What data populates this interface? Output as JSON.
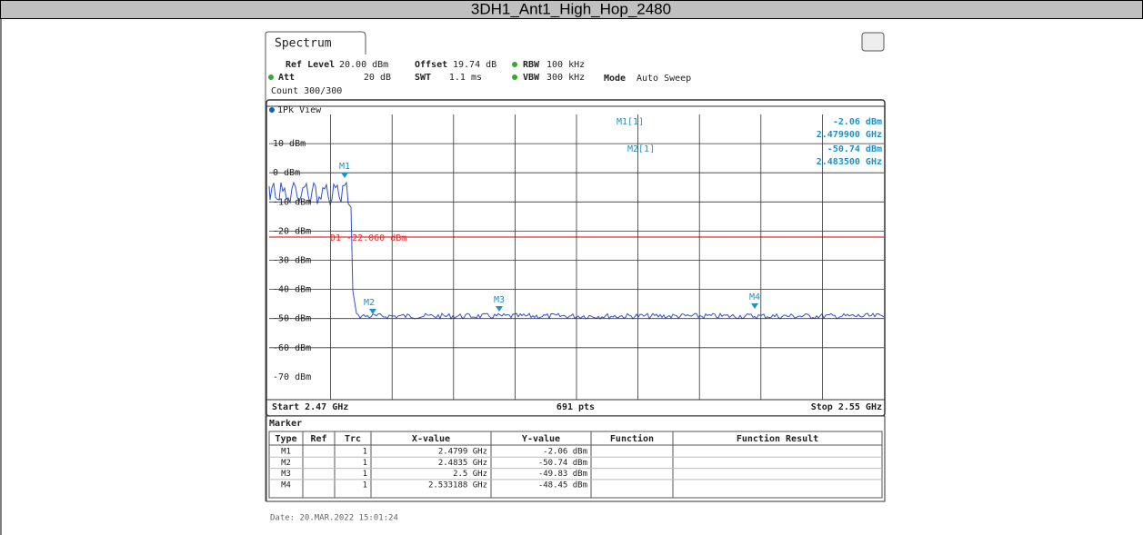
{
  "header": {
    "title": "3DH1_Ant1_High_Hop_2480"
  },
  "screen": {
    "tab": "Spectrum",
    "settings": {
      "ref_level_label": "Ref Level",
      "ref_level": "20.00 dBm",
      "offset_label": "Offset",
      "offset": "19.74 dB",
      "rbw_label": "RBW",
      "rbw": "100 kHz",
      "att_label": "Att",
      "att": "20 dB",
      "swt_label": "SWT",
      "swt": "1.1 ms",
      "vbw_label": "VBW",
      "vbw": "300 kHz",
      "mode_label": "Mode",
      "mode": "Auto Sweep",
      "count": "Count 300/300"
    },
    "view": "1Pk View",
    "y_labels": [
      "10 dBm",
      "0 dBm",
      "-10 dBm",
      "-20 dBm",
      "-30 dBm",
      "-40 dBm",
      "-50 dBm",
      "-60 dBm",
      "-70 dBm"
    ],
    "readout": [
      {
        "name": "M1[1]",
        "level": "-2.06 dBm",
        "freq": "2.479900 GHz"
      },
      {
        "name": "M2[1]",
        "level": "-50.74 dBm",
        "freq": "2.483500 GHz"
      }
    ],
    "plot_markers": [
      "M1",
      "M2",
      "M3",
      "M4"
    ],
    "display_line": "D1  -22.060 dBm",
    "footer": {
      "start": "Start 2.47 GHz",
      "points": "691 pts",
      "stop": "Stop 2.55 GHz"
    },
    "marker_table": {
      "title": "Marker",
      "headers": [
        "Type",
        "Ref",
        "Trc",
        "X-value",
        "Y-value",
        "Function",
        "Function Result"
      ],
      "rows": [
        [
          "M1",
          "",
          "1",
          "2.4799 GHz",
          "-2.06 dBm",
          "",
          ""
        ],
        [
          "M2",
          "",
          "1",
          "2.4835 GHz",
          "-50.74 dBm",
          "",
          ""
        ],
        [
          "M3",
          "",
          "1",
          "2.5 GHz",
          "-49.83 dBm",
          "",
          ""
        ],
        [
          "M4",
          "",
          "1",
          "2.533188 GHz",
          "-48.45 dBm",
          "",
          ""
        ]
      ]
    },
    "date": "Date: 20.MAR.2022  15:01:24"
  }
}
